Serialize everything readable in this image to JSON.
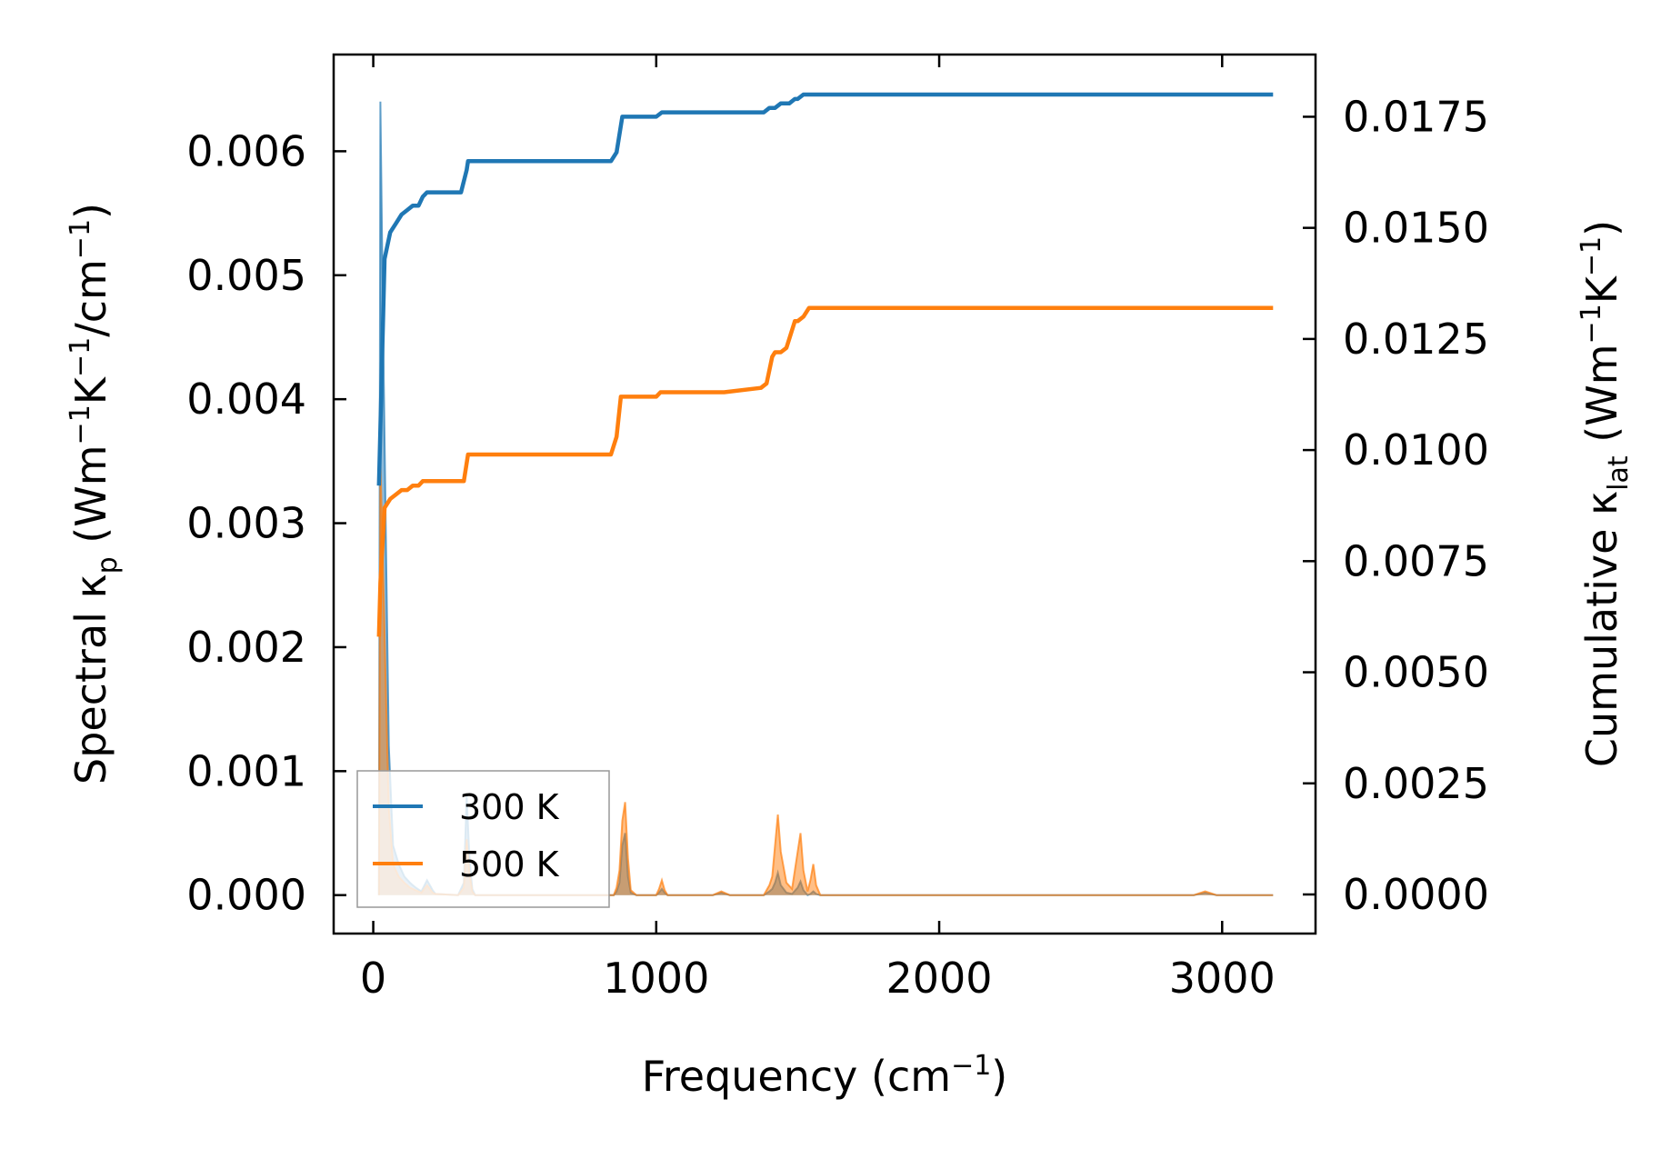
{
  "chart_data": {
    "type": "line",
    "title": "",
    "xlabel": {
      "base": "Frequency (cm",
      "sup": "−1",
      "tail": ")"
    },
    "ylabel_left": {
      "p1": "Spectral κ",
      "sub": "p",
      "p2": " (Wm",
      "sup1": "−1",
      "p3": "K",
      "sup2": "−1",
      "p4": "/cm",
      "sup3": "−1",
      "p5": ")"
    },
    "ylabel_right": {
      "p1": "Cumulative κ",
      "sub": "lat",
      "p2": " (Wm",
      "sup1": "−1",
      "p3": "K",
      "sup2": "−1",
      "p4": ")"
    },
    "xlim": [
      -140,
      3330
    ],
    "ylim_left": [
      -0.00031,
      0.00678
    ],
    "ylim_right": [
      -0.00088,
      0.0189
    ],
    "x_ticks": [
      0,
      1000,
      2000,
      3000
    ],
    "x_tick_labels": [
      "0",
      "1000",
      "2000",
      "3000"
    ],
    "y_left_ticks": [
      0.0,
      0.001,
      0.002,
      0.003,
      0.004,
      0.005,
      0.006
    ],
    "y_left_tick_labels": [
      "0.000",
      "0.001",
      "0.002",
      "0.003",
      "0.004",
      "0.005",
      "0.006"
    ],
    "y_right_ticks": [
      0.0,
      0.0025,
      0.005,
      0.0075,
      0.01,
      0.0125,
      0.015,
      0.0175
    ],
    "y_right_tick_labels": [
      "0.0000",
      "0.0025",
      "0.0050",
      "0.0075",
      "0.0100",
      "0.0125",
      "0.0150",
      "0.0175"
    ],
    "legend": {
      "position": "lower-left",
      "entries": [
        "300 K",
        "500 K"
      ]
    },
    "series": [
      {
        "name": "300 K",
        "color": "#1f77b4",
        "cumulative": {
          "x": [
            20,
            25,
            40,
            60,
            80,
            100,
            120,
            140,
            160,
            175,
            190,
            310,
            330,
            335,
            840,
            860,
            880,
            900,
            1000,
            1020,
            1230,
            1240,
            1380,
            1400,
            1410,
            1420,
            1440,
            1470,
            1490,
            1500,
            1520,
            1550,
            1570,
            1600,
            3180
          ],
          "y": [
            0.0092,
            0.0105,
            0.0143,
            0.0149,
            0.0151,
            0.0153,
            0.0154,
            0.0155,
            0.0155,
            0.0157,
            0.0158,
            0.0158,
            0.0163,
            0.0165,
            0.0165,
            0.0167,
            0.0175,
            0.0175,
            0.0175,
            0.0176,
            0.0176,
            0.0176,
            0.0176,
            0.0177,
            0.0177,
            0.0177,
            0.0178,
            0.0178,
            0.0179,
            0.0179,
            0.018,
            0.018,
            0.018,
            0.018,
            0.018
          ]
        },
        "spectral": {
          "x": [
            20,
            25,
            35,
            45,
            55,
            70,
            90,
            110,
            130,
            150,
            170,
            190,
            200,
            210,
            220,
            300,
            320,
            330,
            340,
            350,
            360,
            380,
            850,
            860,
            870,
            880,
            890,
            900,
            910,
            930,
            1000,
            1010,
            1020,
            1030,
            1040,
            1200,
            1230,
            1260,
            1380,
            1400,
            1410,
            1420,
            1430,
            1440,
            1460,
            1480,
            1500,
            1510,
            1520,
            1535,
            1545,
            1555,
            1565,
            1580,
            2900,
            2940,
            2980,
            3180
          ],
          "y": [
            0.0,
            0.0064,
            0.0045,
            0.0028,
            0.0012,
            0.0004,
            0.00025,
            0.00015,
            0.0001,
            6e-05,
            3e-05,
            0.00012,
            8e-05,
            4e-05,
            1e-05,
            0.0,
            0.0001,
            0.0008,
            0.0003,
            5e-05,
            0.0,
            0.0,
            0.0,
            3e-05,
            0.0001,
            0.0004,
            0.0005,
            0.00015,
            2e-05,
            0.0,
            0.0,
            2e-05,
            5e-05,
            2e-05,
            0.0,
            0.0,
            2e-05,
            0.0,
            0.0,
            3e-05,
            5e-05,
            0.0001,
            0.00018,
            8e-05,
            2e-05,
            1e-05,
            6e-05,
            0.00011,
            4e-05,
            0.0,
            1e-05,
            3e-05,
            1e-05,
            0.0,
            0.0,
            2e-05,
            0.0,
            0.0
          ]
        }
      },
      {
        "name": "500 K",
        "color": "#ff7f0e",
        "cumulative": {
          "x": [
            20,
            25,
            40,
            60,
            80,
            100,
            120,
            140,
            160,
            175,
            190,
            320,
            335,
            840,
            860,
            875,
            900,
            1000,
            1015,
            1230,
            1240,
            1370,
            1390,
            1410,
            1420,
            1440,
            1460,
            1470,
            1490,
            1500,
            1520,
            1540,
            1560,
            2900,
            2950,
            3180
          ],
          "y": [
            0.0058,
            0.007,
            0.0087,
            0.0089,
            0.009,
            0.0091,
            0.0091,
            0.0092,
            0.0092,
            0.0093,
            0.0093,
            0.0093,
            0.0099,
            0.0099,
            0.0103,
            0.0112,
            0.0112,
            0.0112,
            0.0113,
            0.0113,
            0.0113,
            0.0114,
            0.0115,
            0.0121,
            0.0122,
            0.0122,
            0.0123,
            0.0125,
            0.0129,
            0.0129,
            0.013,
            0.0132,
            0.0132,
            0.0132,
            0.0132,
            0.0132
          ]
        },
        "spectral": {
          "x": [
            20,
            25,
            35,
            45,
            55,
            70,
            90,
            110,
            130,
            150,
            170,
            190,
            200,
            210,
            220,
            300,
            320,
            330,
            340,
            350,
            360,
            380,
            850,
            860,
            870,
            880,
            890,
            900,
            910,
            930,
            1000,
            1010,
            1020,
            1030,
            1040,
            1200,
            1230,
            1260,
            1380,
            1400,
            1410,
            1420,
            1430,
            1440,
            1460,
            1480,
            1500,
            1510,
            1520,
            1535,
            1545,
            1555,
            1565,
            1580,
            2900,
            2940,
            2980,
            3180
          ],
          "y": [
            0.0,
            0.0035,
            0.0026,
            0.0016,
            0.0007,
            0.00025,
            0.00015,
            0.0001,
            6e-05,
            4e-05,
            2e-05,
            8e-05,
            5e-05,
            2e-05,
            1e-05,
            0.0,
            6e-05,
            0.00045,
            0.00018,
            3e-05,
            0.0,
            0.0,
            0.0,
            6e-05,
            0.0002,
            0.0006,
            0.00075,
            0.0003,
            4e-05,
            0.0,
            0.0,
            5e-05,
            0.00012,
            4e-05,
            0.0,
            0.0,
            3e-05,
            0.0,
            0.0,
            8e-05,
            0.00015,
            0.0004,
            0.00065,
            0.00035,
            0.0001,
            5e-05,
            0.00035,
            0.0005,
            0.0002,
            3e-05,
            0.00012,
            0.00025,
            8e-05,
            0.0,
            0.0,
            3e-05,
            0.0,
            0.0
          ]
        }
      }
    ]
  }
}
